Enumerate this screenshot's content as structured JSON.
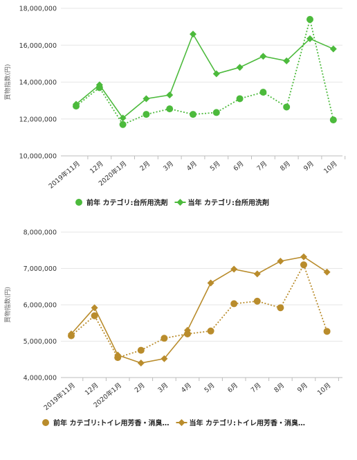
{
  "chart_data": [
    {
      "type": "line",
      "categories": [
        "2019年11月",
        "12月",
        "2020年1月",
        "2月",
        "3月",
        "4月",
        "5月",
        "6月",
        "7月",
        "8月",
        "9月",
        "10月"
      ],
      "ylabel": "買物指数(円)",
      "ylim": [
        10000000,
        18000000
      ],
      "yticks": [
        "10,000,000",
        "12,000,000",
        "14,000,000",
        "16,000,000",
        "18,000,000"
      ],
      "ytick_values": [
        10000000,
        12000000,
        14000000,
        16000000,
        18000000
      ],
      "legend_position": "bottom",
      "series": [
        {
          "name": "前年 カテゴリ:台所用洗剤",
          "style": "dotted",
          "marker": "circle",
          "color": "#4cba3c",
          "values": [
            12700000,
            13700000,
            11700000,
            12250000,
            12550000,
            12250000,
            12350000,
            13100000,
            13450000,
            12650000,
            17400000,
            11950000
          ]
        },
        {
          "name": "当年 カテゴリ:台所用洗剤",
          "style": "solid",
          "marker": "diamond",
          "color": "#4cba3c",
          "values": [
            12800000,
            13850000,
            12050000,
            13100000,
            13300000,
            16600000,
            14450000,
            14800000,
            15400000,
            15150000,
            16350000,
            15800000
          ]
        }
      ]
    },
    {
      "type": "line",
      "categories": [
        "2019年11月",
        "12月",
        "2020年1月",
        "2月",
        "3月",
        "4月",
        "5月",
        "6月",
        "7月",
        "8月",
        "9月",
        "10月"
      ],
      "ylabel": "買物指数(円)",
      "ylim": [
        4000000,
        8000000
      ],
      "yticks": [
        "4,000,000",
        "5,000,000",
        "6,000,000",
        "7,000,000",
        "8,000,000"
      ],
      "ytick_values": [
        4000000,
        5000000,
        6000000,
        7000000,
        8000000
      ],
      "legend_position": "bottom",
      "series": [
        {
          "name": "前年 カテゴリ:トイレ用芳香・消臭…",
          "style": "dotted",
          "marker": "circle",
          "color": "#b98c2c",
          "values": [
            5150000,
            5700000,
            4550000,
            4750000,
            5080000,
            5200000,
            5280000,
            6030000,
            6100000,
            5920000,
            7100000,
            5270000
          ]
        },
        {
          "name": "当年 カテゴリ:トイレ用芳香・消臭…",
          "style": "solid",
          "marker": "diamond",
          "color": "#b98c2c",
          "values": [
            5200000,
            5920000,
            4620000,
            4400000,
            4520000,
            5300000,
            6600000,
            6980000,
            6850000,
            7200000,
            7320000,
            6900000
          ]
        }
      ]
    }
  ]
}
